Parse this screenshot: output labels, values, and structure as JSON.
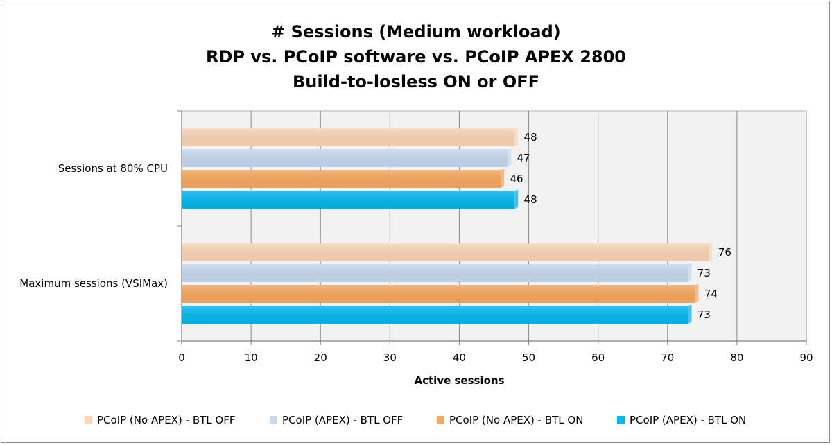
{
  "chart_data": {
    "type": "bar",
    "orientation": "horizontal",
    "title": [
      "# Sessions (Medium workload)",
      "RDP vs. PCoIP software vs. PCoIP APEX 2800",
      "Build-to-losless ON or OFF"
    ],
    "xlabel": "Active sessions",
    "ylabel": "",
    "xlim": [
      0,
      90
    ],
    "xticks": [
      0,
      10,
      20,
      30,
      40,
      50,
      60,
      70,
      80,
      90
    ],
    "grid": true,
    "legend_position": "bottom",
    "categories": [
      "Sessions at 80% CPU",
      "Maximum sessions (VSIMax)"
    ],
    "series": [
      {
        "name": "PCoIP (No APEX) - BTL OFF",
        "color": "#fbd5b5",
        "values": [
          48,
          76
        ]
      },
      {
        "name": "PCoIP (APEX) - BTL OFF",
        "color": "#c6d9f1",
        "values": [
          47,
          73
        ]
      },
      {
        "name": "PCoIP (No APEX) - BTL ON",
        "color": "#f9a75e",
        "values": [
          46,
          74
        ]
      },
      {
        "name": "PCoIP (APEX) - BTL ON",
        "color": "#00b8ef",
        "values": [
          48,
          73
        ]
      }
    ]
  }
}
